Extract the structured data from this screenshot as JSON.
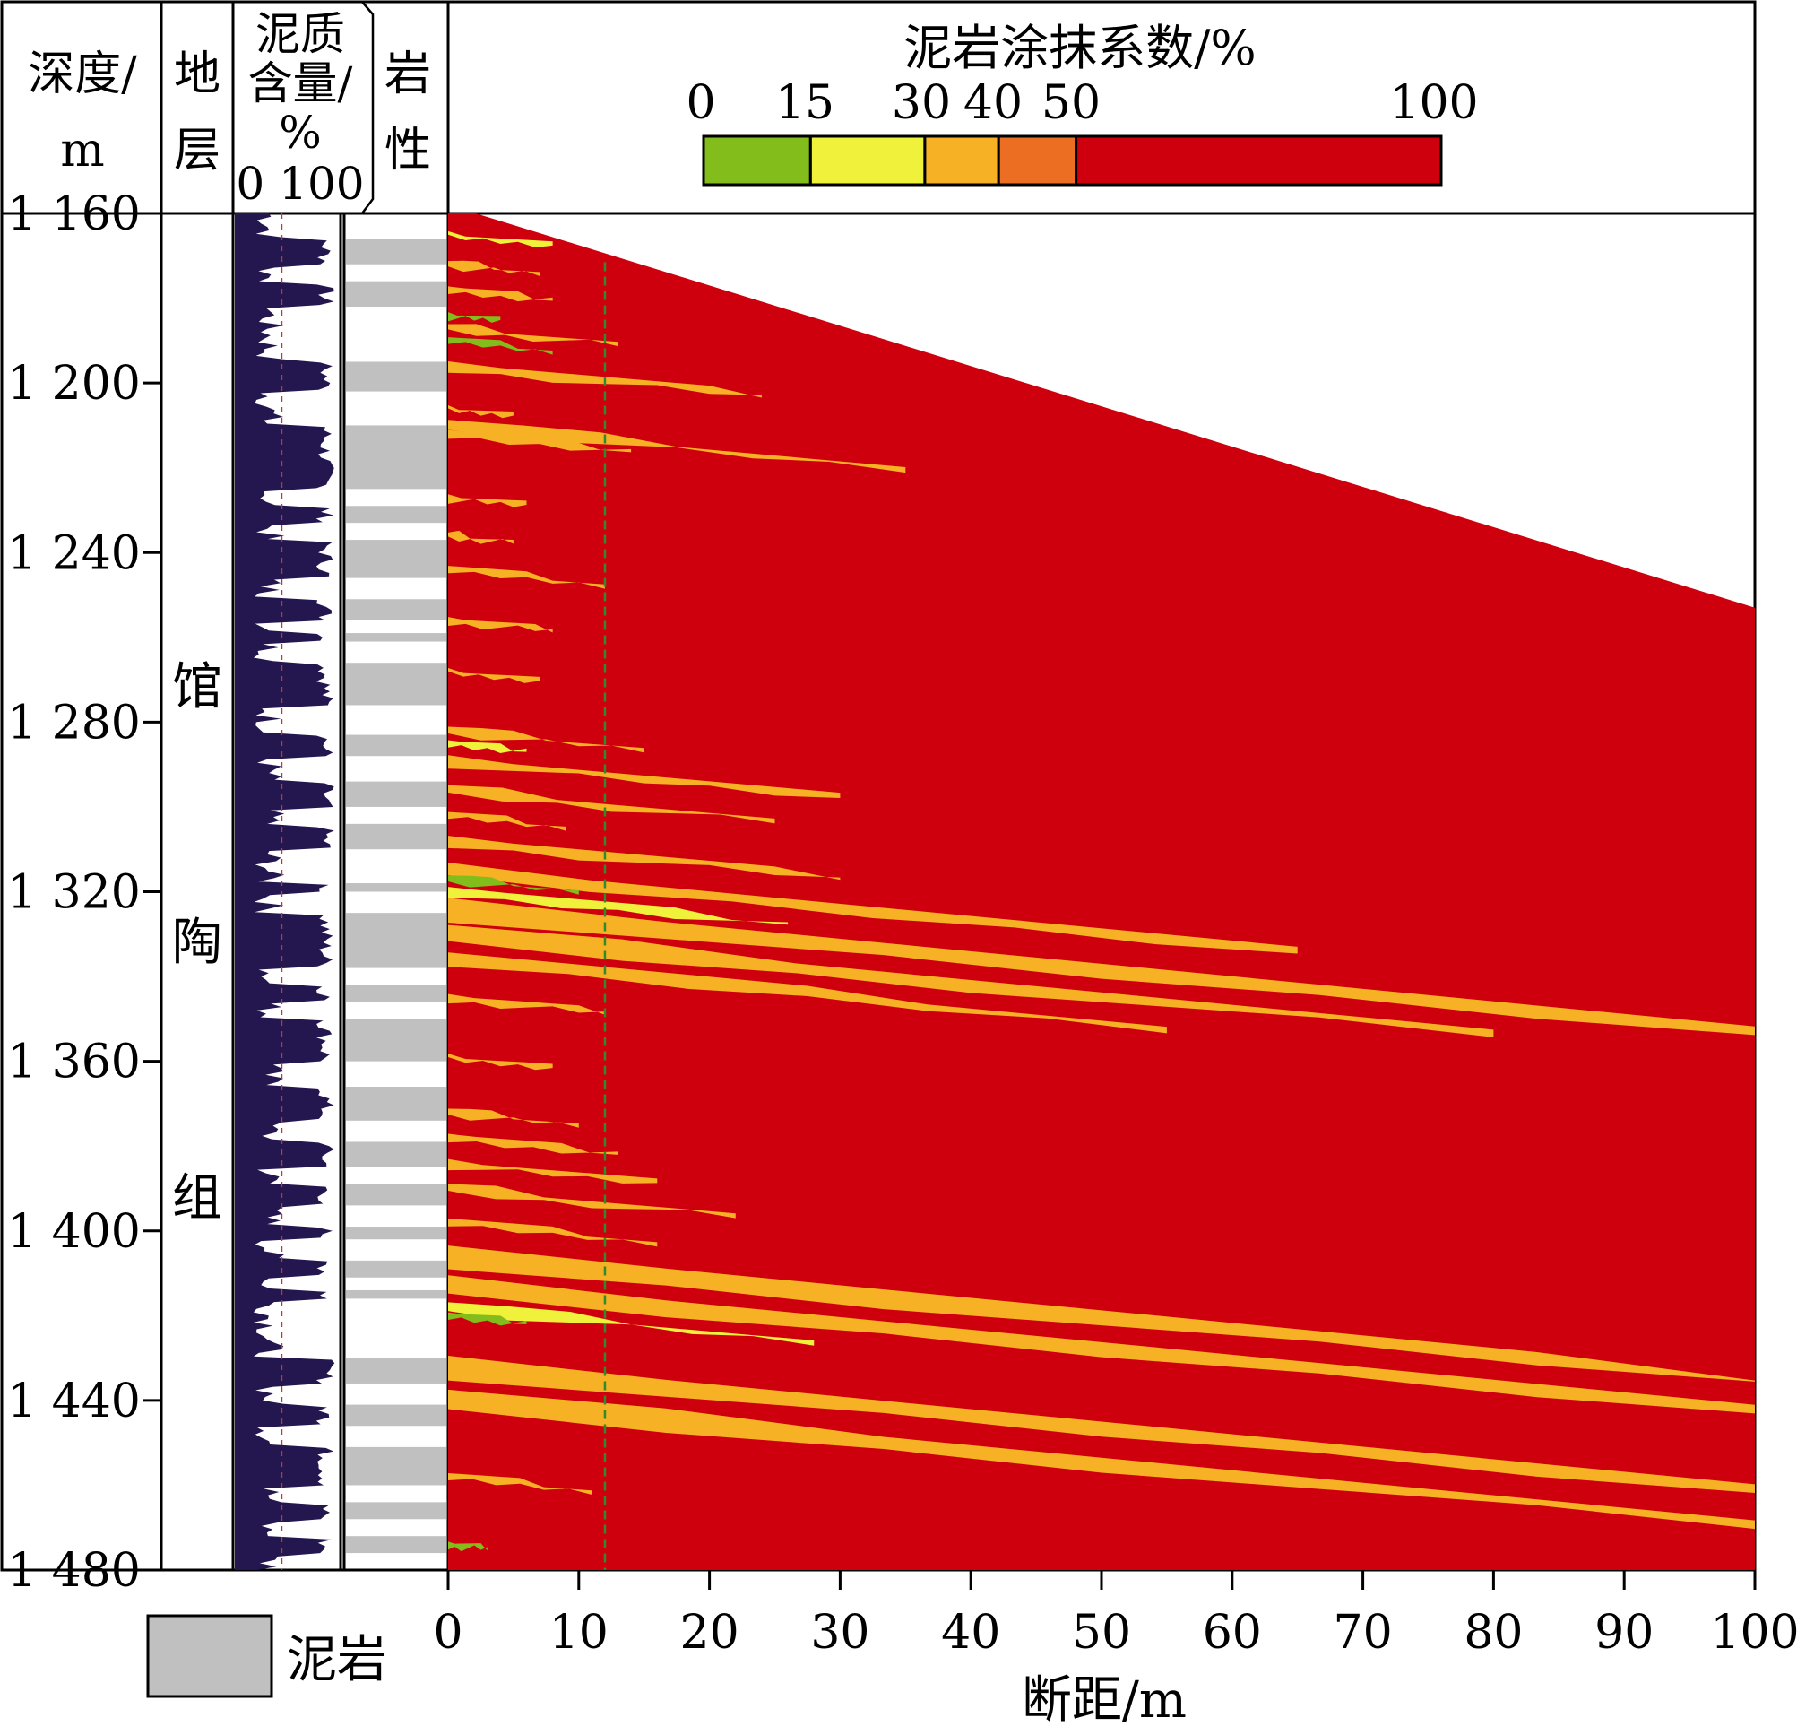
{
  "header": {
    "depth": [
      "深度/",
      "m"
    ],
    "strata": [
      "地",
      "层"
    ],
    "clay": [
      "泥质",
      "含量/",
      "%"
    ],
    "clay_scale": "0 100",
    "lith": [
      "岩",
      "性"
    ]
  },
  "strata_name": [
    "馆",
    "陶",
    "组"
  ],
  "legend_swatch_label": "泥岩",
  "colors": {
    "green": "#82bd1c",
    "yellow": "#eff13a",
    "orange": "#f6b124",
    "orange_red": "#ec6e23",
    "red": "#ce000d",
    "log_fill": "#24164f",
    "lith_gray": "#c0c0c0",
    "cutoff_line": "#2e8b2e",
    "log_cutoff": "#c0392b"
  },
  "chart_data": {
    "type": "heatmap",
    "title": "泥岩涂抹系数/%",
    "xlabel": "断距/m",
    "ylabel": "深度/m",
    "xlim": [
      0,
      100
    ],
    "ylim": [
      1160,
      1480
    ],
    "x_ticks": [
      "0",
      "10",
      "20",
      "30",
      "40",
      "50",
      "60",
      "70",
      "80",
      "90",
      "100"
    ],
    "y_ticks": [
      "1 160",
      "1 200",
      "1 240",
      "1 280",
      "1 320",
      "1 360",
      "1 400",
      "1 440",
      "1 480"
    ],
    "colorbar": {
      "tick_labels": [
        "0",
        "15",
        "30",
        "40",
        "50",
        "100"
      ],
      "bins": [
        {
          "from": 0,
          "to": 15,
          "color": "#82bd1c"
        },
        {
          "from": 15,
          "to": 30,
          "color": "#eff13a"
        },
        {
          "from": 30,
          "to": 40,
          "color": "#f6b124"
        },
        {
          "from": 40,
          "to": 50,
          "color": "#ec6e23"
        },
        {
          "from": 50,
          "to": 100,
          "color": "#ce000d"
        }
      ]
    },
    "cutoff_line_x": 12,
    "upper_boundary": [
      [
        0,
        1158
      ],
      [
        100,
        1253
      ]
    ],
    "bands": [
      {
        "y": 1165,
        "len": 8,
        "c": "yellow"
      },
      {
        "y": 1172,
        "len": 7,
        "c": "orange"
      },
      {
        "y": 1178,
        "len": 8,
        "c": "orange"
      },
      {
        "y": 1184,
        "len": 4,
        "c": "green"
      },
      {
        "y": 1187,
        "len": 13,
        "c": "orange"
      },
      {
        "y": 1190,
        "len": 8,
        "c": "green"
      },
      {
        "y": 1196,
        "len": 24,
        "c": "orange"
      },
      {
        "y": 1206,
        "len": 5,
        "c": "orange"
      },
      {
        "y": 1210,
        "len": 35,
        "c": "orange"
      },
      {
        "y": 1212,
        "len": 14,
        "c": "orange"
      },
      {
        "y": 1227,
        "len": 6,
        "c": "orange"
      },
      {
        "y": 1236,
        "len": 5,
        "c": "orange"
      },
      {
        "y": 1244,
        "len": 12,
        "c": "orange"
      },
      {
        "y": 1256,
        "len": 8,
        "c": "orange"
      },
      {
        "y": 1268,
        "len": 7,
        "c": "orange"
      },
      {
        "y": 1282,
        "len": 15,
        "c": "orange"
      },
      {
        "y": 1285,
        "len": 6,
        "c": "yellow"
      },
      {
        "y": 1289,
        "len": 30,
        "c": "orange"
      },
      {
        "y": 1296,
        "len": 25,
        "c": "orange"
      },
      {
        "y": 1302,
        "len": 9,
        "c": "orange"
      },
      {
        "y": 1308,
        "len": 30,
        "c": "orange"
      },
      {
        "y": 1315,
        "len": 65,
        "c": "orange"
      },
      {
        "y": 1317,
        "len": 10,
        "c": "green"
      },
      {
        "y": 1320,
        "len": 26,
        "c": "yellow"
      },
      {
        "y": 1324,
        "len": 100,
        "c": "orange"
      },
      {
        "y": 1330,
        "len": 80,
        "c": "orange"
      },
      {
        "y": 1336,
        "len": 55,
        "c": "orange"
      },
      {
        "y": 1345,
        "len": 12,
        "c": "orange"
      },
      {
        "y": 1359,
        "len": 8,
        "c": "orange"
      },
      {
        "y": 1372,
        "len": 10,
        "c": "orange"
      },
      {
        "y": 1378,
        "len": 13,
        "c": "orange"
      },
      {
        "y": 1384,
        "len": 16,
        "c": "orange"
      },
      {
        "y": 1390,
        "len": 22,
        "c": "orange"
      },
      {
        "y": 1398,
        "len": 16,
        "c": "orange"
      },
      {
        "y": 1406,
        "len": 100,
        "c": "orange"
      },
      {
        "y": 1413,
        "len": 100,
        "c": "orange"
      },
      {
        "y": 1418,
        "len": 28,
        "c": "yellow"
      },
      {
        "y": 1420,
        "len": 6,
        "c": "green"
      },
      {
        "y": 1432,
        "len": 100,
        "c": "orange"
      },
      {
        "y": 1440,
        "len": 100,
        "c": "orange"
      },
      {
        "y": 1458,
        "len": 11,
        "c": "orange"
      },
      {
        "y": 1474,
        "len": 3,
        "c": "green"
      }
    ],
    "log_cutoff_value": 45,
    "lithology_mudstone_intervals": [
      [
        1166,
        1172
      ],
      [
        1176,
        1182
      ],
      [
        1195,
        1202
      ],
      [
        1210,
        1225
      ],
      [
        1229,
        1233
      ],
      [
        1237,
        1246
      ],
      [
        1251,
        1256
      ],
      [
        1259,
        1261
      ],
      [
        1266,
        1276
      ],
      [
        1283,
        1288
      ],
      [
        1294,
        1300
      ],
      [
        1304,
        1310
      ],
      [
        1318,
        1320
      ],
      [
        1325,
        1338
      ],
      [
        1342,
        1346
      ],
      [
        1350,
        1360
      ],
      [
        1366,
        1374
      ],
      [
        1379,
        1385
      ],
      [
        1389,
        1394
      ],
      [
        1399,
        1402
      ],
      [
        1407,
        1411
      ],
      [
        1414,
        1416
      ],
      [
        1430,
        1436
      ],
      [
        1441,
        1446
      ],
      [
        1451,
        1460
      ],
      [
        1464,
        1468
      ],
      [
        1472,
        1476
      ]
    ]
  }
}
